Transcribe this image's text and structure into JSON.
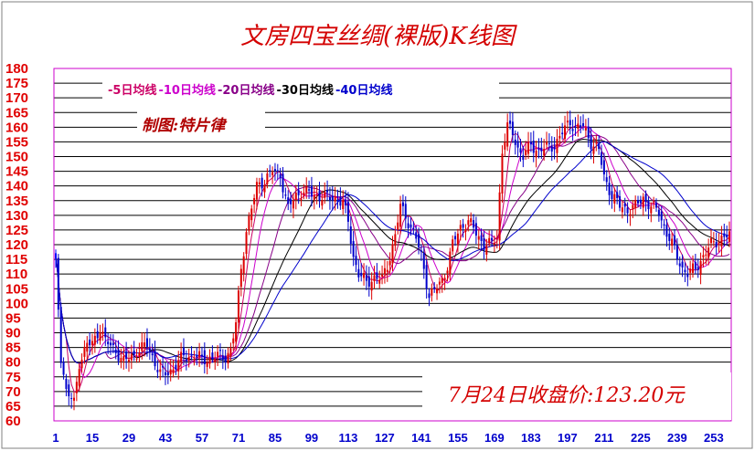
{
  "chart_data": {
    "type": "candlestick",
    "title": "文房四宝丝绸(裸版)K线图",
    "maker_text": "制图:特片律",
    "closing_text": "7月24日收盘价:123.20元",
    "ylim": [
      60,
      180
    ],
    "y_ticks": [
      180,
      175,
      170,
      165,
      160,
      155,
      150,
      145,
      140,
      135,
      130,
      125,
      120,
      115,
      110,
      105,
      100,
      95,
      90,
      85,
      80,
      75,
      70,
      65,
      60
    ],
    "x_ticks": [
      1,
      15,
      29,
      43,
      57,
      71,
      85,
      99,
      113,
      127,
      141,
      155,
      169,
      183,
      197,
      211,
      225,
      239,
      253
    ],
    "x_range": [
      1,
      259
    ],
    "legend": [
      {
        "label": "-5日均线",
        "color": "#cc0066"
      },
      {
        "label": "-10日均线",
        "color": "#cc00cc"
      },
      {
        "label": "-20日均线",
        "color": "#880088"
      },
      {
        "label": "-30日均线",
        "color": "#000000"
      },
      {
        "label": "-40日均线",
        "color": "#0000cc"
      }
    ],
    "colors": {
      "up": "#dd0000",
      "down": "#0000cc",
      "frame": "#cc00cc",
      "grid": "#000000",
      "first_bar": "#0000ff"
    },
    "anchors": [
      [
        1,
        115
      ],
      [
        3,
        82
      ],
      [
        5,
        70
      ],
      [
        8,
        66
      ],
      [
        10,
        80
      ],
      [
        13,
        86
      ],
      [
        15,
        86
      ],
      [
        18,
        92
      ],
      [
        20,
        87
      ],
      [
        24,
        84
      ],
      [
        27,
        80
      ],
      [
        30,
        82
      ],
      [
        33,
        84
      ],
      [
        36,
        86
      ],
      [
        38,
        82
      ],
      [
        41,
        76
      ],
      [
        43,
        76
      ],
      [
        46,
        78
      ],
      [
        50,
        82
      ],
      [
        54,
        82
      ],
      [
        58,
        81
      ],
      [
        63,
        82
      ],
      [
        66,
        82
      ],
      [
        68,
        84
      ],
      [
        70,
        93
      ],
      [
        72,
        112
      ],
      [
        74,
        125
      ],
      [
        76,
        132
      ],
      [
        78,
        140
      ],
      [
        81,
        142
      ],
      [
        84,
        145
      ],
      [
        87,
        144
      ],
      [
        90,
        132
      ],
      [
        93,
        137
      ],
      [
        96,
        138
      ],
      [
        100,
        137
      ],
      [
        104,
        136
      ],
      [
        108,
        136
      ],
      [
        111,
        134
      ],
      [
        113,
        128
      ],
      [
        115,
        116
      ],
      [
        117,
        110
      ],
      [
        120,
        107
      ],
      [
        123,
        109
      ],
      [
        126,
        108
      ],
      [
        128,
        113
      ],
      [
        131,
        123
      ],
      [
        133,
        133
      ],
      [
        136,
        128
      ],
      [
        139,
        122
      ],
      [
        141,
        116
      ],
      [
        144,
        103
      ],
      [
        146,
        104
      ],
      [
        149,
        108
      ],
      [
        151,
        113
      ],
      [
        153,
        120
      ],
      [
        156,
        126
      ],
      [
        159,
        128
      ],
      [
        162,
        124
      ],
      [
        165,
        120
      ],
      [
        168,
        120
      ],
      [
        170,
        123
      ],
      [
        172,
        152
      ],
      [
        174,
        160
      ],
      [
        176,
        158
      ],
      [
        178,
        153
      ],
      [
        180,
        150
      ],
      [
        183,
        154
      ],
      [
        186,
        152
      ],
      [
        189,
        153
      ],
      [
        192,
        154
      ],
      [
        195,
        158
      ],
      [
        198,
        162
      ],
      [
        200,
        160
      ],
      [
        203,
        160
      ],
      [
        206,
        155
      ],
      [
        209,
        152
      ],
      [
        211,
        143
      ],
      [
        214,
        137
      ],
      [
        217,
        133
      ],
      [
        220,
        132
      ],
      [
        223,
        133
      ],
      [
        226,
        136
      ],
      [
        229,
        133
      ],
      [
        232,
        131
      ],
      [
        235,
        124
      ],
      [
        238,
        118
      ],
      [
        241,
        112
      ],
      [
        243,
        110
      ],
      [
        246,
        112
      ],
      [
        249,
        116
      ],
      [
        252,
        120
      ],
      [
        255,
        122
      ],
      [
        259,
        123
      ]
    ]
  }
}
